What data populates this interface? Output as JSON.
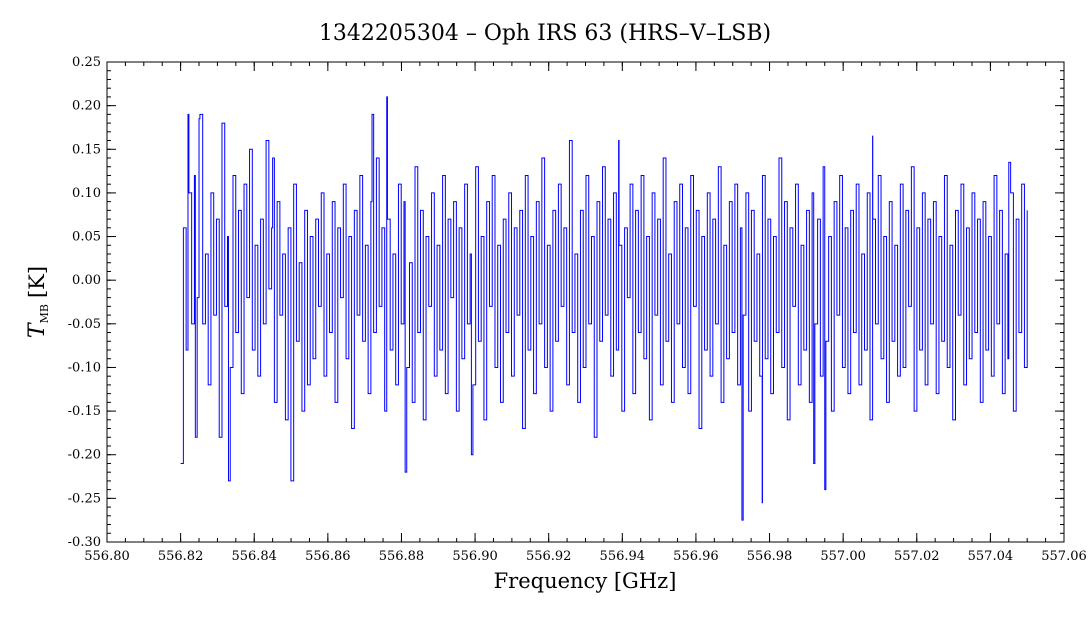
{
  "chart_data": {
    "type": "line",
    "title": "1342205304 – Oph IRS 63 (HRS–V–LSB)",
    "xlabel": "Frequency [GHz]",
    "ylabel": {
      "symbol": "T",
      "subscript": "MB",
      "unit": "[K]"
    },
    "xlim": [
      556.8,
      557.06
    ],
    "ylim": [
      -0.3,
      0.25
    ],
    "xticks": [
      "556.80",
      "556.82",
      "556.84",
      "556.86",
      "556.88",
      "556.90",
      "556.92",
      "556.94",
      "556.96",
      "556.98",
      "557.00",
      "557.02",
      "557.04",
      "557.06"
    ],
    "yticks": [
      "0.25",
      "0.20",
      "0.15",
      "0.10",
      "0.05",
      "0.00",
      "-0.05",
      "-0.10",
      "-0.15",
      "-0.20",
      "-0.25",
      "-0.30"
    ],
    "grid": false,
    "series": [
      {
        "color": "#0000ff",
        "x_range": [
          556.82,
          557.05
        ],
        "values": [
          -0.21,
          0.06,
          -0.08,
          0.1,
          -0.05,
          0.12,
          -0.02,
          0.19,
          -0.05,
          0.03,
          -0.12,
          0.1,
          -0.04,
          0.07,
          -0.18,
          0.18,
          -0.03,
          0.05,
          -0.1,
          0.12,
          -0.06,
          0.08,
          -0.13,
          0.11,
          -0.02,
          0.15,
          -0.08,
          0.04,
          -0.11,
          0.07,
          -0.05,
          0.16,
          -0.01,
          0.06,
          -0.14,
          0.09,
          -0.04,
          0.03,
          -0.16,
          0.06,
          -0.23,
          0.11,
          -0.07,
          0.02,
          -0.15,
          0.08,
          -0.12,
          0.05,
          -0.09,
          0.07,
          -0.03,
          0.1,
          -0.11,
          0.03,
          -0.06,
          0.09,
          -0.14,
          0.06,
          -0.02,
          0.11,
          -0.09,
          0.05,
          -0.17,
          0.08,
          -0.04,
          0.12,
          -0.07,
          0.04,
          -0.13,
          0.09,
          -0.06,
          0.14,
          -0.03,
          0.06,
          -0.15,
          0.07,
          -0.08,
          0.03,
          -0.12,
          0.11,
          -0.05,
          0.09,
          -0.1,
          0.02,
          -0.14,
          0.13,
          -0.06,
          0.08,
          -0.16,
          0.05,
          -0.03,
          0.1,
          -0.11,
          0.04,
          -0.08,
          0.12,
          -0.13,
          0.07,
          -0.02,
          0.09,
          -0.15,
          0.06,
          -0.09,
          0.11,
          -0.05,
          0.03,
          -0.12,
          0.13,
          -0.07,
          0.05,
          -0.16,
          0.09,
          -0.03,
          0.12,
          -0.1,
          0.04,
          -0.14,
          0.07,
          -0.06,
          0.1,
          -0.11,
          0.06,
          -0.04,
          0.08,
          -0.17,
          0.12,
          -0.08,
          0.05,
          -0.13,
          0.09,
          -0.05,
          0.14,
          -0.1,
          0.04,
          -0.15,
          0.08,
          -0.07,
          0.11,
          -0.03,
          0.06,
          -0.12,
          0.16,
          -0.06,
          0.03,
          -0.14,
          0.08,
          -0.1,
          0.12,
          -0.05,
          0.05,
          -0.18,
          0.09,
          -0.07,
          0.13,
          -0.04,
          0.07,
          -0.11,
          0.1,
          -0.08,
          0.04,
          -0.15,
          0.06,
          -0.02,
          0.11,
          -0.13,
          0.08,
          -0.06,
          0.12,
          -0.09,
          0.05,
          -0.16,
          0.1,
          -0.04,
          0.07,
          -0.12,
          0.14,
          -0.07,
          0.03,
          -0.14,
          0.09,
          -0.05,
          0.11,
          -0.1,
          0.06,
          -0.13,
          0.12,
          -0.03,
          0.08,
          -0.17,
          0.05,
          -0.08,
          0.1,
          -0.11,
          0.07,
          -0.05,
          0.13,
          -0.14,
          0.04,
          -0.09,
          0.09,
          -0.06,
          0.11,
          -0.12,
          0.06,
          -0.04,
          0.1,
          -0.15,
          0.08,
          -0.07,
          0.03,
          -0.11,
          0.12,
          -0.09,
          0.07,
          -0.13,
          0.05,
          -0.06,
          0.14,
          -0.1,
          0.09,
          -0.16,
          0.06,
          -0.03,
          0.11,
          -0.12,
          0.04,
          -0.08,
          0.08,
          -0.14,
          0.1,
          -0.05,
          0.07,
          -0.11,
          0.13,
          -0.07,
          0.05,
          -0.15,
          0.09,
          -0.04,
          0.12,
          -0.1,
          0.06,
          -0.13,
          0.08,
          -0.06,
          0.11,
          -0.12,
          0.03,
          -0.08,
          0.1,
          -0.16,
          0.07,
          -0.05,
          0.12,
          -0.09,
          0.05,
          -0.14,
          0.09,
          -0.07,
          0.04,
          -0.11,
          0.11,
          -0.1,
          0.08,
          -0.03,
          0.13,
          -0.15,
          0.06,
          -0.08,
          0.1,
          -0.12,
          0.07,
          -0.05,
          0.09,
          -0.13,
          0.05,
          -0.07,
          0.12,
          -0.1,
          0.04,
          -0.16,
          0.08,
          -0.04,
          0.11,
          -0.12,
          0.06,
          -0.09,
          0.1,
          -0.06,
          0.07,
          -0.14,
          0.09,
          -0.08,
          0.05,
          -0.11,
          0.12,
          -0.05,
          0.08,
          -0.13,
          0.03,
          -0.09,
          0.1,
          -0.15,
          0.07,
          -0.06,
          0.11,
          -0.1,
          0.06
        ],
        "extremes": [
          [
            556.82,
            -0.21
          ],
          [
            556.822,
            0.19
          ],
          [
            556.824,
            -0.18
          ],
          [
            556.825,
            0.185
          ],
          [
            556.833,
            -0.23
          ],
          [
            556.845,
            0.14
          ],
          [
            556.876,
            0.21
          ],
          [
            556.872,
            0.19
          ],
          [
            556.881,
            -0.22
          ],
          [
            556.899,
            -0.2
          ],
          [
            556.939,
            0.16
          ],
          [
            556.9725,
            -0.275
          ],
          [
            556.978,
            -0.255
          ],
          [
            556.995,
            -0.24
          ],
          [
            557.008,
            0.165
          ],
          [
            556.992,
            -0.21
          ],
          [
            557.045,
            0.135
          ],
          [
            557.05,
            0.08
          ]
        ]
      }
    ]
  }
}
